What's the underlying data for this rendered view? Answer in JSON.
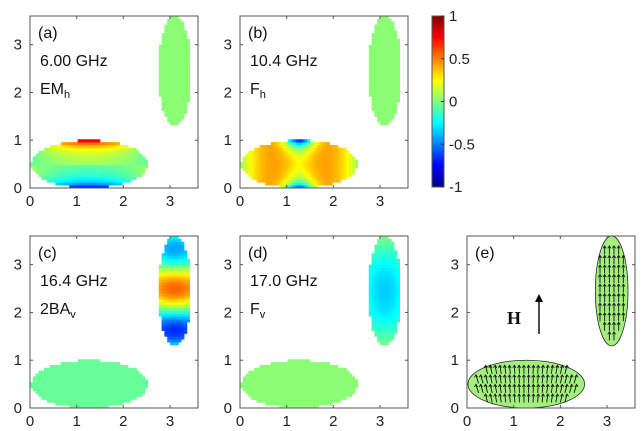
{
  "chart_data": [
    {
      "type": "heatmap",
      "panel": "(a)",
      "annotations": [
        "6.00 GHz",
        "EM",
        "h"
      ],
      "xlim": [
        0,
        3.6
      ],
      "ylim": [
        0,
        3.6
      ],
      "xticks": [
        "0",
        "1",
        "2",
        "3"
      ],
      "yticks": [
        "0",
        "1",
        "2",
        "3"
      ],
      "mode": "a"
    },
    {
      "type": "heatmap",
      "panel": "(b)",
      "annotations": [
        "10.4 GHz",
        "F",
        "h"
      ],
      "xlim": [
        0,
        3.6
      ],
      "ylim": [
        0,
        3.6
      ],
      "xticks": [
        "0",
        "1",
        "2",
        "3"
      ],
      "yticks": [
        "0",
        "1",
        "2",
        "3"
      ],
      "mode": "b"
    },
    {
      "type": "heatmap",
      "panel": "(c)",
      "annotations": [
        "16.4 GHz",
        "2BA",
        "v"
      ],
      "xlim": [
        0,
        3.6
      ],
      "ylim": [
        0,
        3.6
      ],
      "xticks": [
        "0",
        "1",
        "2",
        "3"
      ],
      "yticks": [
        "0",
        "1",
        "2",
        "3"
      ],
      "mode": "c"
    },
    {
      "type": "heatmap",
      "panel": "(d)",
      "annotations": [
        "17.0 GHz",
        "F",
        "v"
      ],
      "xlim": [
        0,
        3.6
      ],
      "ylim": [
        0,
        3.6
      ],
      "xticks": [
        "0",
        "1",
        "2",
        "3"
      ],
      "yticks": [
        "0",
        "1",
        "2",
        "3"
      ],
      "mode": "d"
    },
    {
      "type": "vector-field",
      "panel": "(e)",
      "field_label": "H",
      "xlim": [
        0,
        3.6
      ],
      "ylim": [
        0,
        3.6
      ],
      "xticks": [
        "0",
        "1",
        "2",
        "3"
      ],
      "yticks": [
        "0",
        "1",
        "2",
        "3"
      ],
      "fill_color": "#a3f07f"
    }
  ],
  "geometry": {
    "horizontal_ellipse": {
      "cx": 1.27,
      "cy": 0.5,
      "rx": 1.25,
      "ry": 0.5
    },
    "vertical_ellipse": {
      "cx": 3.1,
      "cy": 2.45,
      "rx": 0.35,
      "ry": 1.15
    }
  },
  "colorbar": {
    "colormap": "jet",
    "range": [
      -1,
      1
    ],
    "ticks": [
      "1",
      "0.5",
      "0",
      "-0.5",
      "-1"
    ],
    "tick_values": [
      1,
      0.5,
      0,
      -0.5,
      -1
    ]
  }
}
